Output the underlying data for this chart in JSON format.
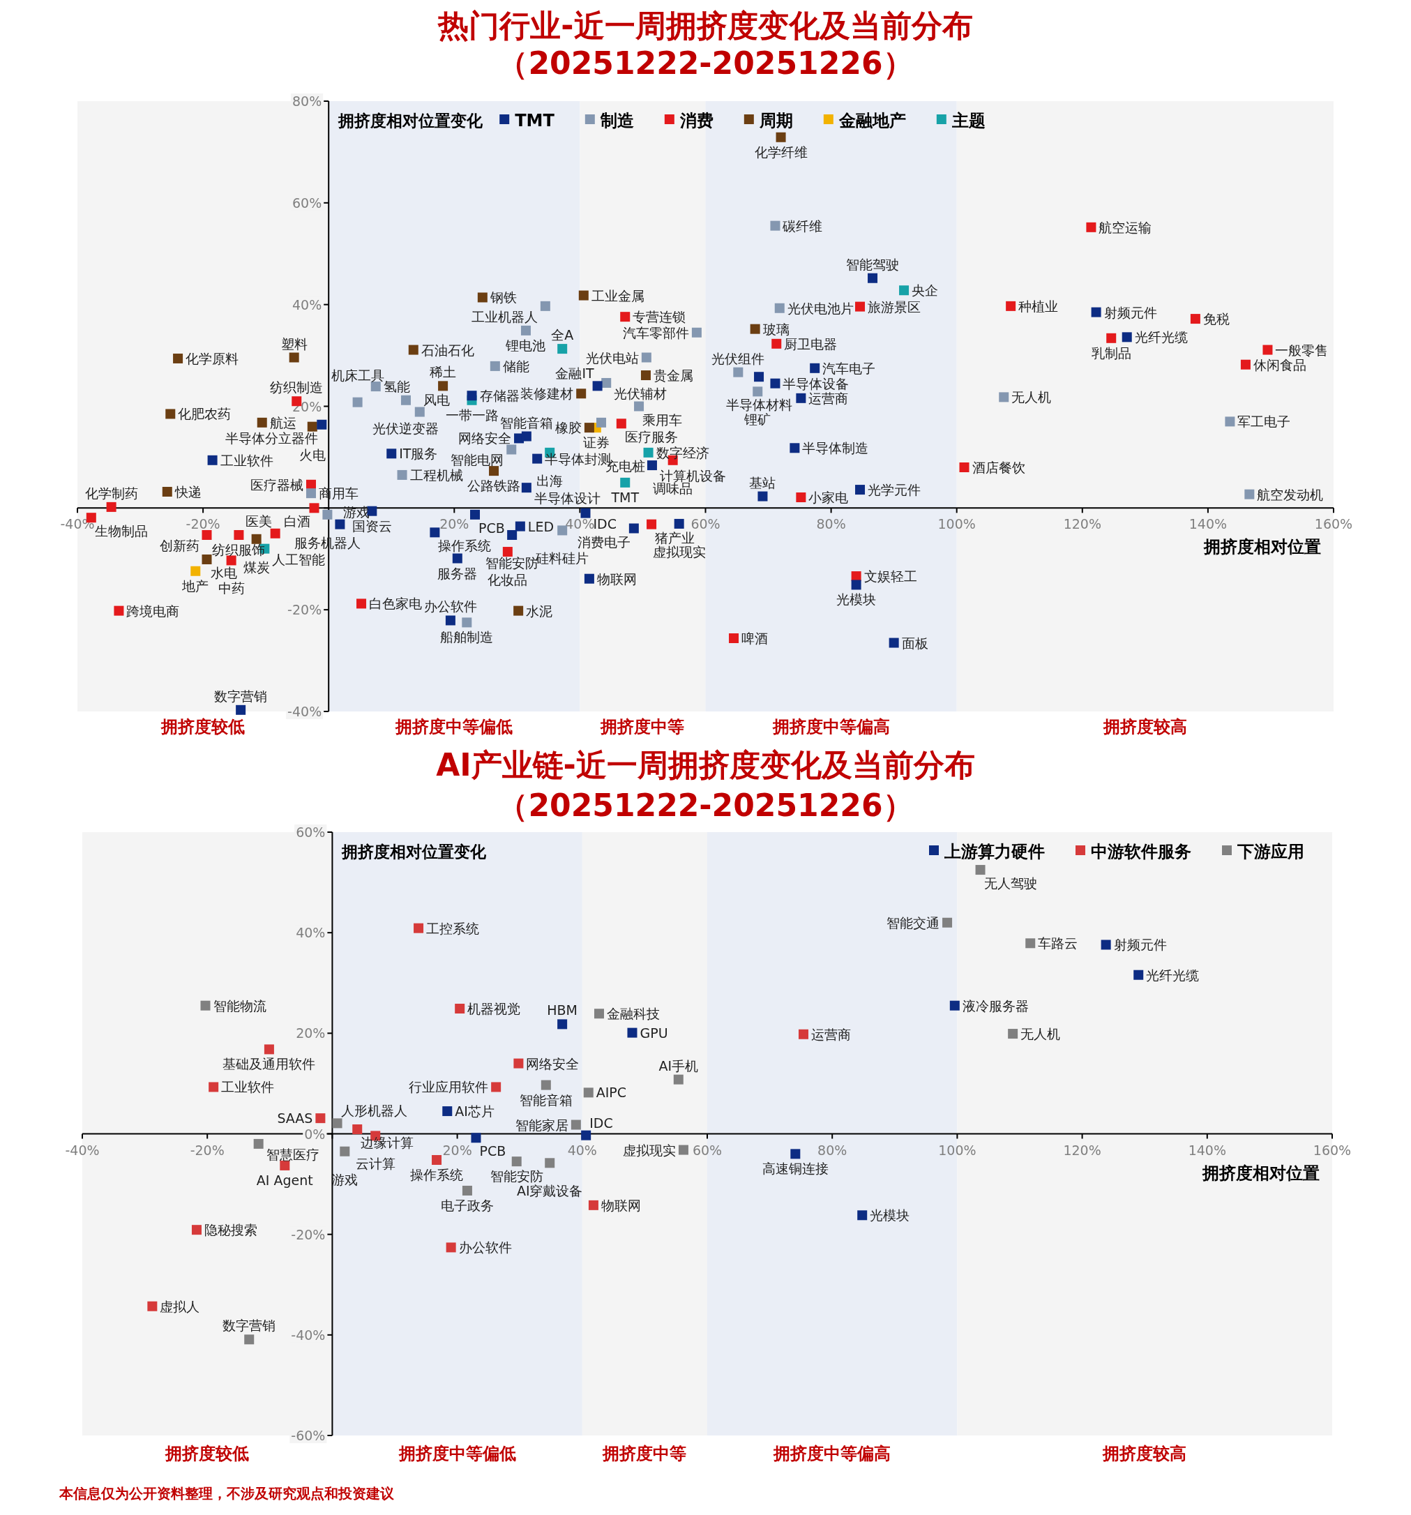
{
  "chart_data": [
    {
      "type": "scatter",
      "title": "热门行业-近一周拥挤度变化及当前分布",
      "subtitle": "（20251222-20251226）",
      "xlabel": "拥挤度相对位置",
      "ylabel": "拥挤度相对位置变化",
      "marker": "square",
      "legend": "top left",
      "xlim": [
        -40,
        160
      ],
      "ylim": [
        -40,
        80
      ],
      "xticks": [
        {
          "value": -40,
          "label": "-40%"
        },
        {
          "value": -20,
          "label": "-20%"
        },
        {
          "value": 0,
          "label": null
        },
        {
          "value": 20,
          "label": "20%"
        },
        {
          "value": 40,
          "label": "40%"
        },
        {
          "value": 60,
          "label": "60%"
        },
        {
          "value": 80,
          "label": "80%"
        },
        {
          "value": 100,
          "label": "100%"
        },
        {
          "value": 120,
          "label": "120%"
        },
        {
          "value": 140,
          "label": "140%"
        },
        {
          "value": 160,
          "label": "160%"
        }
      ],
      "yticks": [
        {
          "value": -40,
          "label": "-40%"
        },
        {
          "value": -20,
          "label": "-20%"
        },
        {
          "value": 0,
          "label": null
        },
        {
          "value": 20,
          "label": "20%"
        },
        {
          "value": 40,
          "label": "40%"
        },
        {
          "value": 60,
          "label": "60%"
        },
        {
          "value": 80,
          "label": "80%"
        }
      ],
      "bands": [
        {
          "axis": "x",
          "from": -40,
          "to": 0,
          "label": "拥挤度较低",
          "color": "#f4f4f4"
        },
        {
          "axis": "x",
          "from": 0,
          "to": 40,
          "label": "拥挤度中等偏低",
          "color": "#eaeef6"
        },
        {
          "axis": "x",
          "from": 40,
          "to": 60,
          "label": "拥挤度中等",
          "color": "#f4f4f4"
        },
        {
          "axis": "x",
          "from": 60,
          "to": 100,
          "label": "拥挤度中等偏高",
          "color": "#eaeef6"
        },
        {
          "axis": "x",
          "from": 100,
          "to": 160,
          "label": "拥挤度较高",
          "color": "#f4f4f4"
        }
      ],
      "series": [
        {
          "name": "TMT",
          "color": "#0d2c83",
          "x": [
            -1.1,
            -18.5,
            -14.0,
            1.8,
            10.0,
            6.9,
            16.9,
            20.5,
            23.3,
            19.4,
            30.5,
            29.2,
            22.8,
            30.3,
            31.5,
            33.2,
            31.5,
            42.8,
            40.9,
            48.6,
            55.8,
            41.5,
            51.5,
            68.5,
            71.1,
            77.4,
            75.2,
            86.6,
            74.2,
            69.1,
            84.6,
            84.0,
            90.0,
            122.2,
            127.1
          ],
          "values": [
            16.4,
            9.4,
            -39.7,
            -3.2,
            10.7,
            -0.6,
            -4.8,
            -9.9,
            -1.3,
            -22.1,
            -3.6,
            -5.3,
            22.1,
            13.7,
            14.1,
            9.7,
            4.0,
            24.0,
            -1.0,
            -4.0,
            -3.1,
            -13.9,
            8.4,
            25.8,
            24.5,
            27.5,
            21.6,
            45.2,
            11.8,
            2.3,
            3.6,
            -15.1,
            -26.5,
            38.5,
            33.6
          ]
        },
        {
          "name": "制造",
          "color": "#8497b0",
          "x": [
            7.5,
            12.3,
            4.6,
            14.5,
            26.5,
            31.4,
            34.5,
            29.1,
            11.7,
            -0.2,
            -2.8,
            22.0,
            37.2,
            44.2,
            50.6,
            49.4,
            43.4,
            58.6,
            71.8,
            71.1,
            65.2,
            68.3,
            107.5,
            143.5,
            146.6
          ],
          "values": [
            23.9,
            21.2,
            20.8,
            18.9,
            27.9,
            34.9,
            39.7,
            11.5,
            6.5,
            -1.3,
            2.9,
            -22.5,
            -4.4,
            24.6,
            29.6,
            20.0,
            16.8,
            34.5,
            39.3,
            55.5,
            26.7,
            22.9,
            21.8,
            17.0,
            2.7
          ]
        },
        {
          "name": "消费",
          "color": "#e41a1c",
          "x": [
            -5.1,
            -2.8,
            -2.3,
            -8.5,
            -15.5,
            -19.4,
            -14.3,
            -34.6,
            -37.8,
            -33.4,
            5.2,
            28.5,
            51.4,
            54.8,
            46.6,
            47.2,
            71.3,
            84.6,
            75.2,
            84.0,
            64.5,
            101.2,
            121.4,
            108.6,
            124.6,
            138.0,
            149.5,
            146.0
          ],
          "values": [
            21.0,
            4.6,
            0.0,
            -5.0,
            -10.3,
            -5.3,
            -5.3,
            0.2,
            -1.9,
            -20.2,
            -18.8,
            -8.6,
            -3.2,
            9.4,
            16.6,
            37.6,
            32.3,
            39.6,
            2.1,
            -13.4,
            -25.6,
            8.0,
            55.2,
            39.7,
            33.4,
            37.2,
            31.1,
            28.2
          ]
        },
        {
          "name": "周期",
          "color": "#6b3e12",
          "x": [
            -24.0,
            -5.5,
            -25.2,
            -10.6,
            -2.6,
            -25.7,
            -11.5,
            -19.4,
            13.5,
            18.2,
            24.5,
            40.6,
            40.2,
            50.5,
            41.5,
            26.3,
            30.2,
            67.9,
            72.0
          ],
          "values": [
            29.4,
            29.6,
            18.5,
            16.8,
            16.0,
            3.2,
            -6.1,
            -10.1,
            31.1,
            24.0,
            41.4,
            41.8,
            22.5,
            26.1,
            15.8,
            7.3,
            -20.2,
            35.2,
            72.9
          ]
        },
        {
          "name": "金融地产",
          "color": "#f2b200",
          "x": [
            42.6,
            -21.2
          ],
          "values": [
            15.8,
            -12.4
          ]
        },
        {
          "name": "主题",
          "color": "#17a2a8",
          "x": [
            37.2,
            22.8,
            35.2,
            -10.2,
            50.9,
            47.2,
            91.6
          ],
          "values": [
            31.3,
            21.2,
            10.9,
            -8.0,
            10.9,
            5.0,
            42.8
          ]
        }
      ],
      "annotations": [
        {
          "text": "化学纤维",
          "x": 72.0,
          "y": 72.9
        },
        {
          "text": "碳纤维",
          "x": 71.1,
          "y": 55.5
        },
        {
          "text": "航空运输",
          "x": 121.4,
          "y": 55.2
        },
        {
          "text": "智能驾驶",
          "x": 86.6,
          "y": 45.2
        },
        {
          "text": "央企",
          "x": 91.6,
          "y": 42.8
        },
        {
          "text": "钢铁",
          "x": 24.5,
          "y": 41.4
        },
        {
          "text": "工业金属",
          "x": 40.6,
          "y": 41.8
        },
        {
          "text": "工业机器人",
          "x": 34.5,
          "y": 39.7
        },
        {
          "text": "光伏电池片",
          "x": 71.8,
          "y": 39.3
        },
        {
          "text": "旅游景区",
          "x": 84.6,
          "y": 39.6
        },
        {
          "text": "种植业",
          "x": 108.6,
          "y": 39.7
        },
        {
          "text": "射频元件",
          "x": 122.2,
          "y": 38.5
        },
        {
          "text": "专营连锁",
          "x": 47.2,
          "y": 37.6
        },
        {
          "text": "免税",
          "x": 138.0,
          "y": 37.2
        },
        {
          "text": "锂电池",
          "x": 31.4,
          "y": 34.9
        },
        {
          "text": "汽车零部件",
          "x": 58.6,
          "y": 34.5
        },
        {
          "text": "玻璃",
          "x": 67.9,
          "y": 35.2
        },
        {
          "text": "光纤光缆",
          "x": 127.1,
          "y": 33.6
        },
        {
          "text": "乳制品",
          "x": 124.6,
          "y": 33.4
        },
        {
          "text": "一般零售",
          "x": 149.5,
          "y": 31.1
        },
        {
          "text": "休闲食品",
          "x": 146.0,
          "y": 28.2
        },
        {
          "text": "厨卫电器",
          "x": 71.3,
          "y": 32.3
        },
        {
          "text": "全A",
          "x": 37.2,
          "y": 31.3
        },
        {
          "text": "石油石化",
          "x": 13.5,
          "y": 31.1
        },
        {
          "text": "化学原料",
          "x": -24.0,
          "y": 29.4
        },
        {
          "text": "塑料",
          "x": -5.5,
          "y": 29.6
        },
        {
          "text": "光伏电站",
          "x": 50.6,
          "y": 29.6
        },
        {
          "text": "储能",
          "x": 26.5,
          "y": 27.9
        },
        {
          "text": "汽车电子",
          "x": 77.4,
          "y": 27.5
        },
        {
          "text": "光伏组件",
          "x": 65.2,
          "y": 26.7
        },
        {
          "text": "半导体材料",
          "x": 68.5,
          "y": 25.8
        },
        {
          "text": "贵金属",
          "x": 50.5,
          "y": 26.1
        },
        {
          "text": "光伏辅材",
          "x": 44.2,
          "y": 24.6
        },
        {
          "text": "半导体设备",
          "x": 71.1,
          "y": 24.5
        },
        {
          "text": "金融IT",
          "x": 42.8,
          "y": 24.0
        },
        {
          "text": "稀土",
          "x": 18.2,
          "y": 24.0
        },
        {
          "text": "氢能",
          "x": 7.5,
          "y": 23.9
        },
        {
          "text": "锂矿",
          "x": 68.3,
          "y": 22.9
        },
        {
          "text": "装修建材",
          "x": 40.2,
          "y": 22.5
        },
        {
          "text": "存储器",
          "x": 22.8,
          "y": 22.1
        },
        {
          "text": "无人机",
          "x": 107.5,
          "y": 21.8
        },
        {
          "text": "运营商",
          "x": 75.2,
          "y": 21.6
        },
        {
          "text": "光伏逆变器",
          "x": 12.3,
          "y": 21.2
        },
        {
          "text": "一带一路",
          "x": 22.8,
          "y": 21.2
        },
        {
          "text": "纺织制造",
          "x": -5.1,
          "y": 21.0
        },
        {
          "text": "机床工具",
          "x": 4.6,
          "y": 20.8
        },
        {
          "text": "乘用车",
          "x": 49.4,
          "y": 20.0
        },
        {
          "text": "风电",
          "x": 14.5,
          "y": 18.9
        },
        {
          "text": "化肥农药",
          "x": -25.2,
          "y": 18.5
        },
        {
          "text": "军工电子",
          "x": 143.5,
          "y": 17.0
        },
        {
          "text": "航运",
          "x": -10.6,
          "y": 16.8
        },
        {
          "text": "医疗服务",
          "x": 46.6,
          "y": 16.6
        },
        {
          "text": "半导体分立器件",
          "x": -1.1,
          "y": 16.4
        },
        {
          "text": "火电",
          "x": -2.6,
          "y": 16.0
        },
        {
          "text": "证券",
          "x": 42.6,
          "y": 15.8
        },
        {
          "text": "橡胶",
          "x": 41.5,
          "y": 15.8
        },
        {
          "text": "网络安全",
          "x": 30.3,
          "y": 13.7
        },
        {
          "text": "智能音箱",
          "x": 31.5,
          "y": 14.1
        },
        {
          "text": "智能电网",
          "x": 29.1,
          "y": 11.5
        },
        {
          "text": "半导体制造",
          "x": 74.2,
          "y": 11.8
        },
        {
          "text": "充电桩",
          "x": 50.9,
          "y": 10.9
        },
        {
          "text": "出海",
          "x": 35.2,
          "y": 10.9
        },
        {
          "text": "IT服务",
          "x": 10.0,
          "y": 10.7
        },
        {
          "text": "半导体封测",
          "x": 33.2,
          "y": 9.7
        },
        {
          "text": "工业软件",
          "x": -18.5,
          "y": 9.4
        },
        {
          "text": "调味品",
          "x": 54.8,
          "y": 9.4
        },
        {
          "text": "数字经济",
          "x": 50.9,
          "y": 10.9
        },
        {
          "text": "计算机设备",
          "x": 51.5,
          "y": 8.4
        },
        {
          "text": "酒店餐饮",
          "x": 101.2,
          "y": 8.0
        },
        {
          "text": "公路铁路",
          "x": 26.3,
          "y": 7.3
        },
        {
          "text": "工程机械",
          "x": 11.7,
          "y": 6.5
        },
        {
          "text": "TMT",
          "x": 47.2,
          "y": 5.0
        },
        {
          "text": "医疗器械",
          "x": -2.8,
          "y": 4.6
        },
        {
          "text": "半导体设计",
          "x": 31.5,
          "y": 4.0
        },
        {
          "text": "光学元件",
          "x": 84.6,
          "y": 3.6
        },
        {
          "text": "快递",
          "x": -25.7,
          "y": 3.2
        },
        {
          "text": "商用车",
          "x": -2.8,
          "y": 2.9
        },
        {
          "text": "航空发动机",
          "x": 146.6,
          "y": 2.7
        },
        {
          "text": "基站",
          "x": 69.1,
          "y": 2.3
        },
        {
          "text": "小家电",
          "x": 75.2,
          "y": 2.1
        },
        {
          "text": "化学制药",
          "x": -34.6,
          "y": 0.2
        },
        {
          "text": "白酒",
          "x": -2.3,
          "y": 0.0
        },
        {
          "text": "国资云",
          "x": 6.9,
          "y": -0.6
        },
        {
          "text": "IDC",
          "x": 40.9,
          "y": -1.0
        },
        {
          "text": "服务机器人",
          "x": -0.2,
          "y": -1.3
        },
        {
          "text": "PCB",
          "x": 23.3,
          "y": -1.3
        },
        {
          "text": "生物制品",
          "x": -37.8,
          "y": -1.9
        },
        {
          "text": "虚拟现实",
          "x": 55.8,
          "y": -3.1
        },
        {
          "text": "游戏",
          "x": 1.8,
          "y": -3.2
        },
        {
          "text": "猪产业",
          "x": 51.4,
          "y": -3.2
        },
        {
          "text": "LED",
          "x": 30.5,
          "y": -3.6
        },
        {
          "text": "消费电子",
          "x": 48.6,
          "y": -4.0
        },
        {
          "text": "硅料硅片",
          "x": 37.2,
          "y": -4.4
        },
        {
          "text": "操作系统",
          "x": 16.9,
          "y": -4.8
        },
        {
          "text": "医美",
          "x": -8.5,
          "y": -5.0
        },
        {
          "text": "智能安防",
          "x": 29.2,
          "y": -5.3
        },
        {
          "text": "创新药",
          "x": -19.4,
          "y": -5.3
        },
        {
          "text": "纺织服饰",
          "x": -14.3,
          "y": -5.3
        },
        {
          "text": "煤炭",
          "x": -11.5,
          "y": -6.1
        },
        {
          "text": "人工智能",
          "x": -10.2,
          "y": -8.0
        },
        {
          "text": "化妆品",
          "x": 28.5,
          "y": -8.6
        },
        {
          "text": "服务器",
          "x": 20.5,
          "y": -9.9
        },
        {
          "text": "水电",
          "x": -19.4,
          "y": -10.1
        },
        {
          "text": "中药",
          "x": -15.5,
          "y": -10.3
        },
        {
          "text": "地产",
          "x": -21.2,
          "y": -12.4
        },
        {
          "text": "文娱轻工",
          "x": 84.0,
          "y": -13.4
        },
        {
          "text": "物联网",
          "x": 41.5,
          "y": -13.9
        },
        {
          "text": "光模块",
          "x": 84.0,
          "y": -15.1
        },
        {
          "text": "白色家电",
          "x": 5.2,
          "y": -18.8
        },
        {
          "text": "跨境电商",
          "x": -33.4,
          "y": -20.2
        },
        {
          "text": "水泥",
          "x": 30.2,
          "y": -20.2
        },
        {
          "text": "办公软件",
          "x": 19.4,
          "y": -22.1
        },
        {
          "text": "船舶制造",
          "x": 22.0,
          "y": -22.5
        },
        {
          "text": "啤酒",
          "x": 64.5,
          "y": -25.6
        },
        {
          "text": "面板",
          "x": 90.0,
          "y": -26.5
        },
        {
          "text": "数字营销",
          "x": -14.0,
          "y": -39.7
        }
      ]
    },
    {
      "type": "scatter",
      "title": "AI产业链-近一周拥挤度变化及当前分布",
      "subtitle": "（20251222-20251226）",
      "xlabel": "拥挤度相对位置",
      "ylabel": "拥挤度相对位置变化",
      "marker": "square",
      "legend": "top right",
      "xlim": [
        -40,
        160
      ],
      "ylim": [
        -60,
        60
      ],
      "xticks": [
        {
          "value": -40,
          "label": "-40%"
        },
        {
          "value": -20,
          "label": "-20%"
        },
        {
          "value": 0,
          "label": null
        },
        {
          "value": 20,
          "label": "20%"
        },
        {
          "value": 40,
          "label": "40%"
        },
        {
          "value": 60,
          "label": "60%"
        },
        {
          "value": 80,
          "label": "80%"
        },
        {
          "value": 100,
          "label": "100%"
        },
        {
          "value": 120,
          "label": "120%"
        },
        {
          "value": 140,
          "label": "140%"
        },
        {
          "value": 160,
          "label": "160%"
        }
      ],
      "yticks": [
        {
          "value": -60,
          "label": "-60%"
        },
        {
          "value": -40,
          "label": "-40%"
        },
        {
          "value": -20,
          "label": "-20%"
        },
        {
          "value": 0,
          "label": "0%"
        },
        {
          "value": 20,
          "label": "20%"
        },
        {
          "value": 40,
          "label": "40%"
        },
        {
          "value": 60,
          "label": "60%"
        }
      ],
      "bands": [
        {
          "axis": "x",
          "from": -40,
          "to": 0,
          "label": "拥挤度较低",
          "color": "#f4f4f4"
        },
        {
          "axis": "x",
          "from": 0,
          "to": 40,
          "label": "拥挤度中等偏低",
          "color": "#eaeef6"
        },
        {
          "axis": "x",
          "from": 40,
          "to": 60,
          "label": "拥挤度中等",
          "color": "#f4f4f4"
        },
        {
          "axis": "x",
          "from": 60,
          "to": 100,
          "label": "拥挤度中等偏高",
          "color": "#eaeef6"
        },
        {
          "axis": "x",
          "from": 100,
          "to": 160,
          "label": "拥挤度较高",
          "color": "#f4f4f4"
        }
      ],
      "series": [
        {
          "name": "上游算力硬件",
          "color": "#0d2c83",
          "x": [
            36.8,
            48.0,
            18.4,
            23.0,
            40.6,
            123.8,
            129.0,
            99.6,
            74.1,
            84.8
          ],
          "values": [
            21.8,
            20.1,
            4.5,
            -0.8,
            -0.3,
            37.6,
            31.6,
            25.5,
            -4.0,
            -16.2
          ]
        },
        {
          "name": "中游软件服务",
          "color": "#d63a3a",
          "x": [
            13.8,
            -10.1,
            -19.0,
            -1.9,
            4.0,
            6.9,
            16.7,
            -7.6,
            -21.7,
            -28.8,
            20.4,
            29.8,
            26.2,
            41.8,
            19.0,
            75.4
          ],
          "values": [
            40.9,
            16.8,
            9.3,
            3.1,
            0.9,
            -0.4,
            -5.2,
            -6.3,
            -19.1,
            -34.3,
            24.9,
            14.0,
            9.3,
            -14.2,
            -22.6,
            19.8
          ]
        },
        {
          "name": "下游应用",
          "color": "#808080",
          "x": [
            -20.3,
            0.8,
            2.0,
            -11.8,
            -13.3,
            42.7,
            34.2,
            41.0,
            55.4,
            39.0,
            56.2,
            29.5,
            34.8,
            21.6,
            103.7,
            98.4,
            111.7,
            108.9
          ],
          "values": [
            25.5,
            2.1,
            -3.5,
            -2.0,
            -40.9,
            23.9,
            9.7,
            8.2,
            10.8,
            1.8,
            -3.2,
            -5.5,
            -5.8,
            -11.3,
            52.5,
            42.0,
            37.9,
            19.9
          ]
        }
      ],
      "annotations": [
        {
          "text": "无人驾驶",
          "x": 103.7,
          "y": 52.5
        },
        {
          "text": "智能交通",
          "x": 98.4,
          "y": 42.0
        },
        {
          "text": "工控系统",
          "x": 13.8,
          "y": 40.9
        },
        {
          "text": "车路云",
          "x": 111.7,
          "y": 37.9
        },
        {
          "text": "射频元件",
          "x": 123.8,
          "y": 37.6
        },
        {
          "text": "光纤光缆",
          "x": 129.0,
          "y": 31.6
        },
        {
          "text": "智能物流",
          "x": -20.3,
          "y": 25.5
        },
        {
          "text": "液冷服务器",
          "x": 99.6,
          "y": 25.5
        },
        {
          "text": "机器视觉",
          "x": 20.4,
          "y": 24.9
        },
        {
          "text": "金融科技",
          "x": 42.7,
          "y": 23.9
        },
        {
          "text": "HBM",
          "x": 36.8,
          "y": 21.8
        },
        {
          "text": "GPU",
          "x": 48.0,
          "y": 20.1
        },
        {
          "text": "无人机",
          "x": 108.9,
          "y": 19.9
        },
        {
          "text": "运营商",
          "x": 75.4,
          "y": 19.8
        },
        {
          "text": "基础及通用软件",
          "x": -10.1,
          "y": 16.8
        },
        {
          "text": "网络安全",
          "x": 29.8,
          "y": 14.0
        },
        {
          "text": "AI手机",
          "x": 55.4,
          "y": 10.8
        },
        {
          "text": "智能音箱",
          "x": 34.2,
          "y": 9.7
        },
        {
          "text": "工业软件",
          "x": -19.0,
          "y": 9.3
        },
        {
          "text": "行业应用软件",
          "x": 26.2,
          "y": 9.3
        },
        {
          "text": "AIPC",
          "x": 41.0,
          "y": 8.2
        },
        {
          "text": "AI芯片",
          "x": 18.4,
          "y": 4.5
        },
        {
          "text": "SAAS",
          "x": -1.9,
          "y": 3.1
        },
        {
          "text": "人形机器人",
          "x": 0.8,
          "y": 2.1
        },
        {
          "text": "智能家居",
          "x": 39.0,
          "y": 1.8
        },
        {
          "text": "边缘计算",
          "x": 4.0,
          "y": 0.9
        },
        {
          "text": "IDC",
          "x": 40.6,
          "y": -0.3
        },
        {
          "text": "云计算",
          "x": 6.9,
          "y": -0.4
        },
        {
          "text": "PCB",
          "x": 23.0,
          "y": -0.8
        },
        {
          "text": "智慧医疗",
          "x": -11.8,
          "y": -2.0
        },
        {
          "text": "虚拟现实",
          "x": 56.2,
          "y": -3.2
        },
        {
          "text": "游戏",
          "x": 2.0,
          "y": -3.5
        },
        {
          "text": "高速铜连接",
          "x": 74.1,
          "y": -4.0
        },
        {
          "text": "操作系统",
          "x": 16.7,
          "y": -5.2
        },
        {
          "text": "智能安防",
          "x": 29.5,
          "y": -5.5
        },
        {
          "text": "AI穿戴设备",
          "x": 34.8,
          "y": -5.8
        },
        {
          "text": "AI Agent",
          "x": -7.6,
          "y": -6.3
        },
        {
          "text": "电子政务",
          "x": 21.6,
          "y": -11.3
        },
        {
          "text": "物联网",
          "x": 41.8,
          "y": -14.2
        },
        {
          "text": "光模块",
          "x": 84.8,
          "y": -16.2
        },
        {
          "text": "隐秘搜索",
          "x": -21.7,
          "y": -19.1
        },
        {
          "text": "办公软件",
          "x": 19.0,
          "y": -22.6
        },
        {
          "text": "虚拟人",
          "x": -28.8,
          "y": -34.3
        },
        {
          "text": "数字营销",
          "x": -13.3,
          "y": -40.9
        },
        "本信息仅为公开资料整理，不涉及研究观点和投资建议"
      ]
    }
  ]
}
